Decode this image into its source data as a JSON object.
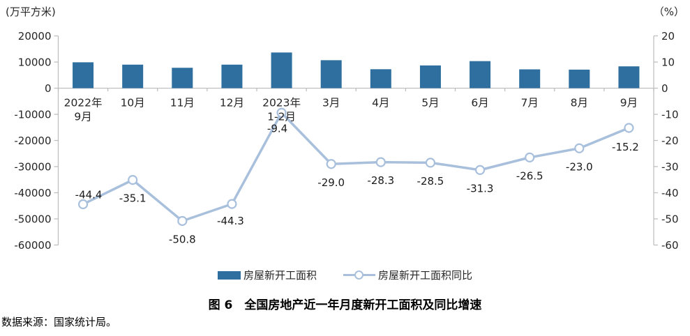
{
  "units": {
    "left": "(万平方米)",
    "right": "（%）"
  },
  "legend": {
    "bar": "房屋新开工面积",
    "line": "房屋新开工面积同比"
  },
  "title": "图 6　全国房地产近一年月度新开工面积及同比增速",
  "source": "数据来源：国家统计局。",
  "colors": {
    "bar": "#2e6f9f",
    "line": "#a9c0dd",
    "axis": "#bfbfbf",
    "text": "#262626",
    "label": "#1a1a1a"
  },
  "chart_data": {
    "type": "bar+line",
    "categories": [
      [
        "2022年",
        "9月"
      ],
      [
        "10月"
      ],
      [
        "11月"
      ],
      [
        "12月"
      ],
      [
        "2023年",
        "1-2月"
      ],
      [
        "3月"
      ],
      [
        "4月"
      ],
      [
        "5月"
      ],
      [
        "6月"
      ],
      [
        "7月"
      ],
      [
        "8月"
      ],
      [
        "9月"
      ]
    ],
    "series": [
      {
        "name": "房屋新开工面积",
        "type": "bar",
        "axis": "left",
        "values": [
          9900,
          9000,
          7800,
          9000,
          13650,
          10700,
          7250,
          8700,
          10350,
          7200,
          7100,
          8350
        ]
      },
      {
        "name": "房屋新开工面积同比",
        "type": "line",
        "axis": "right",
        "values": [
          -44.4,
          -35.1,
          -50.8,
          -44.3,
          -9.4,
          -29.0,
          -28.3,
          -28.5,
          -31.3,
          -26.5,
          -23.0,
          -15.2
        ],
        "labels": [
          "-44.4",
          "-35.1",
          "-50.8",
          "-44.3",
          "-9.4",
          "-29.0",
          "-28.3",
          "-28.5",
          "-31.3",
          "-26.5",
          "-23.0",
          "-15.2"
        ]
      }
    ],
    "left_axis": {
      "unit": "(万平方米)",
      "min": -60000,
      "max": 20000,
      "step": 10000
    },
    "right_axis": {
      "unit": "（%）",
      "min": -60,
      "max": 20,
      "step": 10
    },
    "grid": "zero-line-only",
    "legend_position": "bottom"
  }
}
